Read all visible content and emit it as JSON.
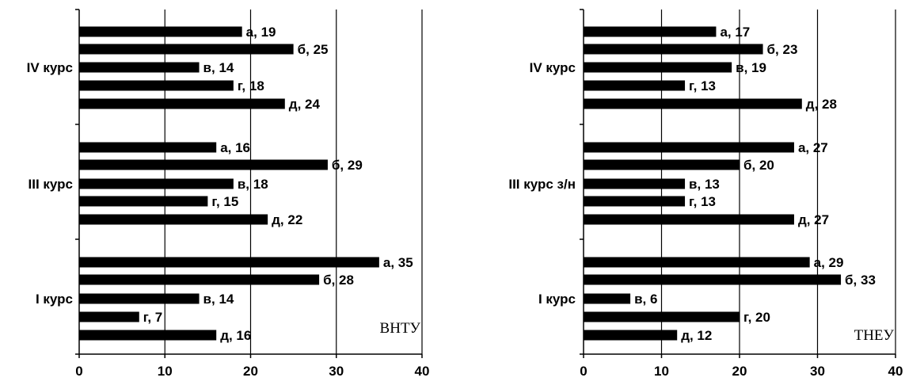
{
  "chart_data": [
    {
      "type": "bar",
      "orientation": "horizontal",
      "annotation": "ВНТУ",
      "xlim": [
        0,
        40
      ],
      "xticks": [
        0,
        10,
        20,
        30,
        40
      ],
      "grid": true,
      "groups": [
        {
          "label": "IV курс",
          "bars": [
            {
              "text": "а, 19",
              "value": 19
            },
            {
              "text": "б, 25",
              "value": 25
            },
            {
              "text": "в, 14",
              "value": 14
            },
            {
              "text": "г, 18",
              "value": 18
            },
            {
              "text": "д, 24",
              "value": 24
            }
          ]
        },
        {
          "label": "III курс",
          "bars": [
            {
              "text": "а, 16",
              "value": 16
            },
            {
              "text": "б, 29",
              "value": 29
            },
            {
              "text": "в, 18",
              "value": 18
            },
            {
              "text": "г, 15",
              "value": 15
            },
            {
              "text": "д, 22",
              "value": 22
            }
          ]
        },
        {
          "label": "I курс",
          "bars": [
            {
              "text": "а, 35",
              "value": 35
            },
            {
              "text": "б, 28",
              "value": 28
            },
            {
              "text": "в, 14",
              "value": 14
            },
            {
              "text": "г, 7",
              "value": 7
            },
            {
              "text": "д, 16",
              "value": 16
            }
          ]
        }
      ]
    },
    {
      "type": "bar",
      "orientation": "horizontal",
      "annotation": "ТНЕУ",
      "xlim": [
        0,
        40
      ],
      "xticks": [
        0,
        10,
        20,
        30,
        40
      ],
      "grid": true,
      "groups": [
        {
          "label": "IV курс",
          "bars": [
            {
              "text": "а, 17",
              "value": 17
            },
            {
              "text": "б, 23",
              "value": 23
            },
            {
              "text": "в, 19",
              "value": 19
            },
            {
              "text": "г, 13",
              "value": 13
            },
            {
              "text": "д, 28",
              "value": 28
            }
          ]
        },
        {
          "label": "III курс з/н",
          "bars": [
            {
              "text": "а, 27",
              "value": 27
            },
            {
              "text": "б, 20",
              "value": 20
            },
            {
              "text": "в, 13",
              "value": 13
            },
            {
              "text": "г, 13",
              "value": 13
            },
            {
              "text": "д, 27",
              "value": 27
            }
          ]
        },
        {
          "label": "I курс",
          "bars": [
            {
              "text": "а, 29",
              "value": 29
            },
            {
              "text": "б, 33",
              "value": 33
            },
            {
              "text": "в, 6",
              "value": 6
            },
            {
              "text": "г, 20",
              "value": 20
            },
            {
              "text": "д, 12",
              "value": 12
            }
          ]
        }
      ]
    }
  ]
}
